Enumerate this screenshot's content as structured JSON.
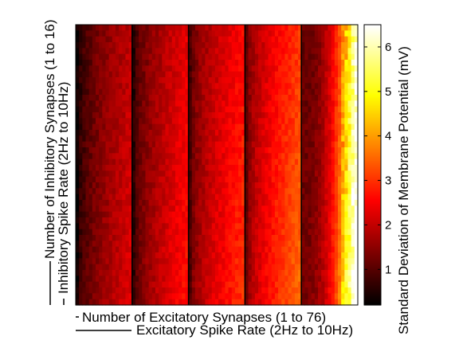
{
  "chart_data": {
    "type": "heatmap",
    "xlabel": "Number of Excitatory Synapses (1 to 76)",
    "xlabel2": "Excitatory Spike Rate (2Hz to 10Hz)",
    "ylabel": "Number of Inhibitory Synapses (1 to 16)",
    "ylabel2": "Inhibitory Spike Rate (2Hz to 10Hz)",
    "colorbar": {
      "label": "Standard Deviation of Membrane Potential (mV)",
      "ticks": [
        1,
        2,
        3,
        4,
        5,
        6
      ],
      "range": [
        0.2,
        6.5
      ],
      "colormap": "hot"
    },
    "grid": {
      "x_blocks": 5,
      "columns_per_block": 17,
      "rows": 48
    },
    "block_profile": [
      {
        "block": 1,
        "min": 0.3,
        "max": 2.1
      },
      {
        "block": 2,
        "min": 0.6,
        "max": 2.5
      },
      {
        "block": 3,
        "min": 0.9,
        "max": 2.8
      },
      {
        "block": 4,
        "min": 1.1,
        "max": 3.3
      },
      {
        "block": 5,
        "min": 1.2,
        "max": 6.4
      }
    ]
  }
}
